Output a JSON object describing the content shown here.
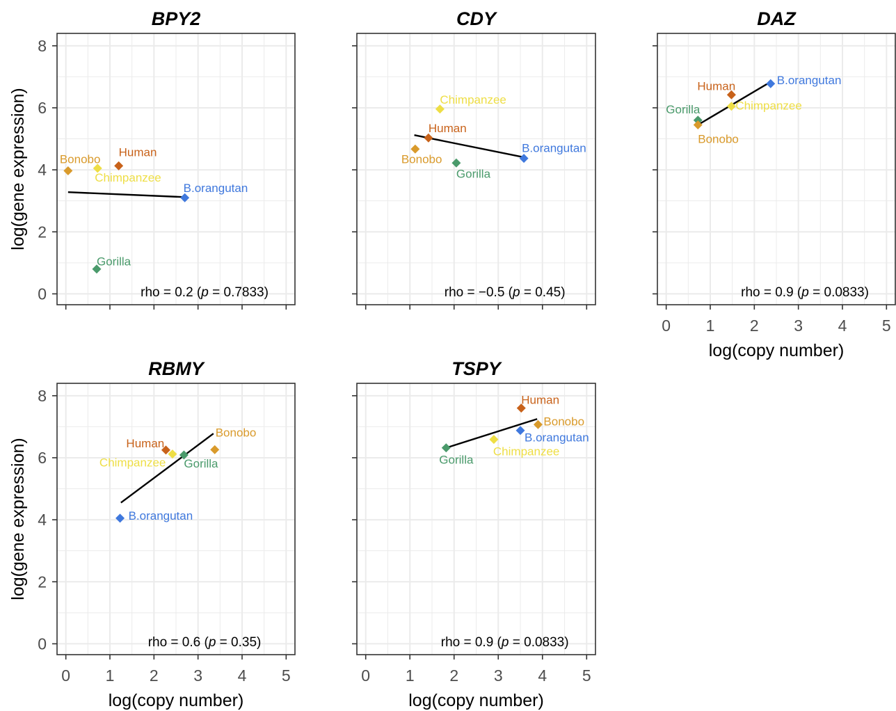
{
  "colors": {
    "Human": "#c8621a",
    "Bonobo": "#d99a2b",
    "Chimpanzee": "#eede45",
    "Gorilla": "#4a9a6b",
    "B.orangutan": "#3f78dd",
    "grid": "#ebebeb",
    "panel_border": "#333333",
    "fit_line": "#000000"
  },
  "axes": {
    "xlabel": "log(copy number)",
    "ylabel": "log(gene expression)",
    "xlim": [
      -0.2,
      5.2
    ],
    "ylim": [
      -0.35,
      8.4
    ],
    "xticks": [
      "0",
      "1",
      "2",
      "3",
      "4",
      "5"
    ],
    "yticks": [
      "0",
      "2",
      "4",
      "6",
      "8"
    ]
  },
  "chart_data": [
    {
      "type": "scatter",
      "title": "BPY2",
      "stat_text": "rho = 0.2 (p = 0.7833)",
      "fit_line": {
        "x": [
          0.05,
          2.7
        ],
        "y": [
          3.28,
          3.12
        ]
      },
      "points": [
        {
          "name": "Bonobo",
          "x": 0.05,
          "y": 3.97
        },
        {
          "name": "Chimpanzee",
          "x": 0.72,
          "y": 4.05
        },
        {
          "name": "Human",
          "x": 1.2,
          "y": 4.13
        },
        {
          "name": "B.orangutan",
          "x": 2.7,
          "y": 3.1
        },
        {
          "name": "Gorilla",
          "x": 0.7,
          "y": 0.8
        }
      ]
    },
    {
      "type": "scatter",
      "title": "CDY",
      "stat_text": "rho = −0.5 (p = 0.45)",
      "fit_line": {
        "x": [
          1.1,
          3.6
        ],
        "y": [
          5.12,
          4.4
        ]
      },
      "points": [
        {
          "name": "Chimpanzee",
          "x": 1.68,
          "y": 5.96
        },
        {
          "name": "Human",
          "x": 1.42,
          "y": 5.03
        },
        {
          "name": "Bonobo",
          "x": 1.12,
          "y": 4.67
        },
        {
          "name": "Gorilla",
          "x": 2.05,
          "y": 4.22
        },
        {
          "name": "B.orangutan",
          "x": 3.58,
          "y": 4.37
        }
      ]
    },
    {
      "type": "scatter",
      "title": "DAZ",
      "stat_text": "rho = 0.9 (p = 0.0833)",
      "fit_line": {
        "x": [
          0.72,
          2.35
        ],
        "y": [
          5.45,
          6.82
        ]
      },
      "points": [
        {
          "name": "B.orangutan",
          "x": 2.37,
          "y": 6.78
        },
        {
          "name": "Human",
          "x": 1.48,
          "y": 6.42
        },
        {
          "name": "Chimpanzee",
          "x": 1.48,
          "y": 6.05
        },
        {
          "name": "Gorilla",
          "x": 0.72,
          "y": 5.6
        },
        {
          "name": "Bonobo",
          "x": 0.72,
          "y": 5.45
        }
      ]
    },
    {
      "type": "scatter",
      "title": "RBMY",
      "stat_text": "rho = 0.6 (p = 0.35)",
      "fit_line": {
        "x": [
          1.25,
          3.35
        ],
        "y": [
          4.55,
          6.78
        ]
      },
      "points": [
        {
          "name": "Human",
          "x": 2.27,
          "y": 6.25
        },
        {
          "name": "Chimpanzee",
          "x": 2.42,
          "y": 6.12
        },
        {
          "name": "Gorilla",
          "x": 2.68,
          "y": 6.09
        },
        {
          "name": "Bonobo",
          "x": 3.38,
          "y": 6.26
        },
        {
          "name": "B.orangutan",
          "x": 1.23,
          "y": 4.05
        }
      ]
    },
    {
      "type": "scatter",
      "title": "TSPY",
      "stat_text": "rho = 0.9 (p = 0.0833)",
      "fit_line": {
        "x": [
          1.82,
          3.88
        ],
        "y": [
          6.32,
          7.25
        ]
      },
      "points": [
        {
          "name": "Human",
          "x": 3.52,
          "y": 7.6
        },
        {
          "name": "Bonobo",
          "x": 3.9,
          "y": 7.07
        },
        {
          "name": "B.orangutan",
          "x": 3.5,
          "y": 6.88
        },
        {
          "name": "Chimpanzee",
          "x": 2.9,
          "y": 6.59
        },
        {
          "name": "Gorilla",
          "x": 1.82,
          "y": 6.32
        }
      ]
    }
  ]
}
